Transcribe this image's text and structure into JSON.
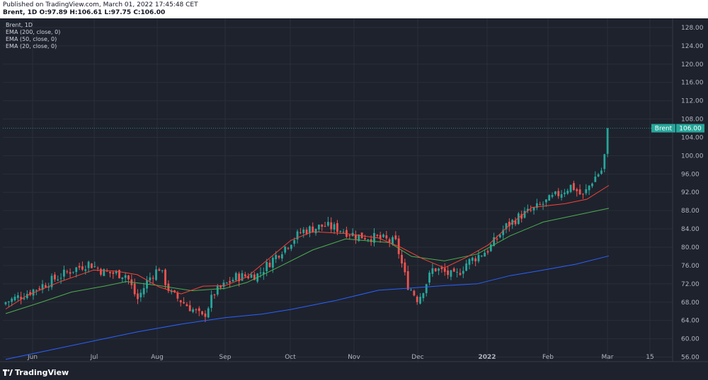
{
  "header": {
    "published": "Published on TradingView.com, March 01, 2022 17:45:48 CET",
    "symbol": "Brent, 1D",
    "ohlc": "O:97.89 H:106.61 L:97.75 C:106.00"
  },
  "legend": {
    "symbol": "Brent, 1D",
    "ema200": "EMA (200, close, 0)",
    "ema50": "EMA (50, close, 0)",
    "ema20": "EMA (20, close, 0)"
  },
  "price_tag": {
    "name": "Brent",
    "value": "106.00"
  },
  "logo": "TradingView",
  "colors": {
    "up": "#26a69a",
    "down": "#ef5350",
    "ema200": "#2962ff",
    "ema50": "#4caf50",
    "ema20": "#f44336",
    "background": "#1e222d"
  },
  "chart_data": {
    "type": "candlestick",
    "x_tick_labels": [
      "Jun",
      "Jul",
      "Aug",
      "Sep",
      "Oct",
      "Nov",
      "Dec",
      "2022",
      "Feb",
      "Mar",
      "15"
    ],
    "y_tick_labels": [
      "56.00",
      "60.00",
      "64.00",
      "68.00",
      "72.00",
      "76.00",
      "80.00",
      "84.00",
      "88.00",
      "92.00",
      "96.00",
      "100.00",
      "104.00",
      "108.00",
      "112.00",
      "116.00",
      "120.00",
      "124.00",
      "128.00"
    ],
    "ylim": [
      55,
      130
    ],
    "last_price": 106.0,
    "series": [
      {
        "name": "EMA (200, close, 0)",
        "points": [
          [
            0,
            55.5
          ],
          [
            20,
            57.5
          ],
          [
            40,
            59.5
          ],
          [
            60,
            61.5
          ],
          [
            80,
            63.2
          ],
          [
            100,
            64.6
          ],
          [
            117,
            65.4
          ],
          [
            130,
            66.4
          ],
          [
            150,
            68.3
          ],
          [
            170,
            70.6
          ],
          [
            185,
            71.1
          ],
          [
            200,
            71.6
          ],
          [
            215,
            72.0
          ],
          [
            230,
            73.8
          ],
          [
            245,
            75.0
          ],
          [
            260,
            76.3
          ],
          [
            275,
            78.1
          ]
        ]
      },
      {
        "name": "EMA (50, close, 0)",
        "points": [
          [
            0,
            65.5
          ],
          [
            15,
            67.8
          ],
          [
            30,
            70.2
          ],
          [
            45,
            71.5
          ],
          [
            55,
            72.5
          ],
          [
            70,
            71.6
          ],
          [
            85,
            70.5
          ],
          [
            100,
            71.0
          ],
          [
            110,
            72.3
          ],
          [
            125,
            75.8
          ],
          [
            140,
            79.4
          ],
          [
            155,
            81.8
          ],
          [
            175,
            81.0
          ],
          [
            185,
            78.0
          ],
          [
            200,
            77.0
          ],
          [
            215,
            78.5
          ],
          [
            230,
            82.5
          ],
          [
            245,
            85.5
          ],
          [
            260,
            87.0
          ],
          [
            275,
            88.5
          ]
        ]
      },
      {
        "name": "EMA (20, close, 0)",
        "points": [
          [
            0,
            66.5
          ],
          [
            10,
            69.5
          ],
          [
            25,
            72.5
          ],
          [
            40,
            75.0
          ],
          [
            50,
            74.8
          ],
          [
            60,
            74.0
          ],
          [
            70,
            71.3
          ],
          [
            80,
            69.8
          ],
          [
            90,
            71.5
          ],
          [
            100,
            71.6
          ],
          [
            110,
            73.5
          ],
          [
            120,
            77.5
          ],
          [
            130,
            81.5
          ],
          [
            140,
            83.4
          ],
          [
            155,
            83.0
          ],
          [
            170,
            82.0
          ],
          [
            180,
            80.0
          ],
          [
            190,
            77.5
          ],
          [
            200,
            75.5
          ],
          [
            210,
            77.8
          ],
          [
            220,
            80.5
          ],
          [
            230,
            85.0
          ],
          [
            240,
            88.7
          ],
          [
            255,
            89.5
          ],
          [
            265,
            90.5
          ],
          [
            275,
            93.5
          ]
        ]
      },
      {
        "name": "Brent",
        "close_path": [
          [
            0,
            68.0
          ],
          [
            10,
            70.0
          ],
          [
            20,
            72.5
          ],
          [
            30,
            75.0
          ],
          [
            38,
            76.5
          ],
          [
            45,
            74.5
          ],
          [
            55,
            74.0
          ],
          [
            60,
            68.5
          ],
          [
            65,
            73.0
          ],
          [
            70,
            75.5
          ],
          [
            75,
            70.0
          ],
          [
            85,
            66.5
          ],
          [
            90,
            64.5
          ],
          [
            95,
            70.0
          ],
          [
            105,
            73.5
          ],
          [
            115,
            74.0
          ],
          [
            125,
            79.0
          ],
          [
            135,
            83.5
          ],
          [
            145,
            84.7
          ],
          [
            152,
            84.0
          ],
          [
            160,
            82.5
          ],
          [
            170,
            82.0
          ],
          [
            178,
            81.0
          ],
          [
            183,
            72.0
          ],
          [
            188,
            68.5
          ],
          [
            195,
            75.5
          ],
          [
            200,
            74.5
          ],
          [
            205,
            73.5
          ],
          [
            210,
            76.5
          ],
          [
            220,
            79.5
          ],
          [
            228,
            84.5
          ],
          [
            235,
            87.0
          ],
          [
            240,
            88.0
          ],
          [
            250,
            91.0
          ],
          [
            258,
            93.5
          ],
          [
            263,
            91.0
          ],
          [
            268,
            95.0
          ],
          [
            272,
            97.0
          ],
          [
            275,
            106.0
          ]
        ]
      }
    ]
  }
}
